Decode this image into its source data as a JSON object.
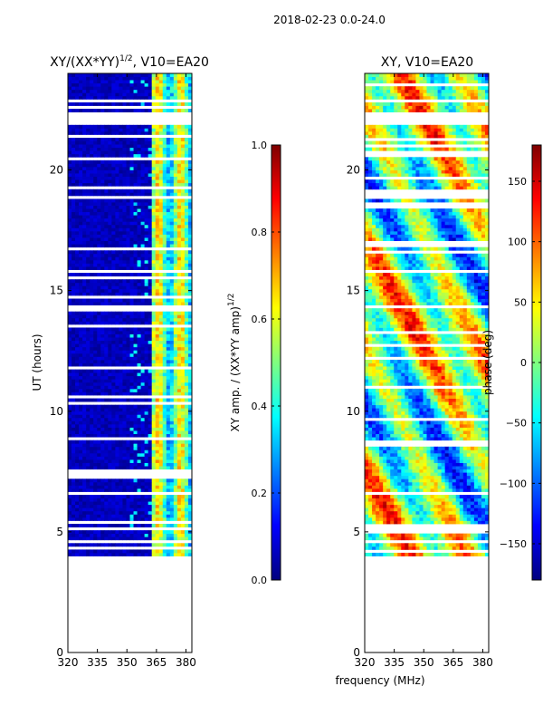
{
  "figure": {
    "suptitle": "2018-02-23 0.0-24.0",
    "xlabel_shared": "frequency (MHz)"
  },
  "colors": {
    "jet": [
      "#00007f",
      "#0000ff",
      "#007fff",
      "#00ffff",
      "#7fff7f",
      "#ffff00",
      "#ff7f00",
      "#ff0000",
      "#7f0000"
    ],
    "white": "#ffffff"
  },
  "chart_data": [
    {
      "type": "heatmap",
      "title_base": "XY/(XX*YY)",
      "title_sup": "1/2",
      "title_tail": ", V10=EA20",
      "xlabel": "",
      "ylabel": "UT (hours)",
      "xlim": [
        320,
        383
      ],
      "ylim": [
        0,
        24
      ],
      "xticks": [
        320,
        335,
        350,
        365,
        380
      ],
      "yticks": [
        0,
        5,
        10,
        15,
        20
      ],
      "data_extent_ut": [
        4.0,
        24.0
      ],
      "gap_ut": [
        21.8,
        22.3
      ],
      "value_range": [
        0,
        1
      ],
      "colorbar": {
        "label_base": "XY amp. / (XX*YY amp)",
        "label_sup": "1/2",
        "range": [
          0.0,
          1.0
        ],
        "ticks": [
          "0.0",
          "0.2",
          "0.4",
          "0.6",
          "0.8",
          "1.0"
        ],
        "tick_values": [
          0.0,
          0.2,
          0.4,
          0.6,
          0.8,
          1.0
        ]
      }
    },
    {
      "type": "heatmap",
      "title": "XY, V10=EA20",
      "xlabel": "frequency (MHz)",
      "ylabel": "",
      "xlim": [
        320,
        383
      ],
      "ylim": [
        0,
        24
      ],
      "xticks": [
        320,
        335,
        350,
        365,
        380
      ],
      "yticks": [
        0,
        5,
        10,
        15,
        20
      ],
      "data_extent_ut": [
        4.0,
        24.0
      ],
      "gap_ut": [
        21.8,
        22.3
      ],
      "value_range": [
        -180,
        180
      ],
      "colorbar": {
        "label": "phase (deg)",
        "range": [
          -180,
          180
        ],
        "ticks": [
          "−150",
          "−100",
          "−50",
          "0",
          "50",
          "100",
          "150"
        ],
        "tick_values": [
          -150,
          -100,
          -50,
          0,
          50,
          100,
          150
        ]
      }
    }
  ]
}
